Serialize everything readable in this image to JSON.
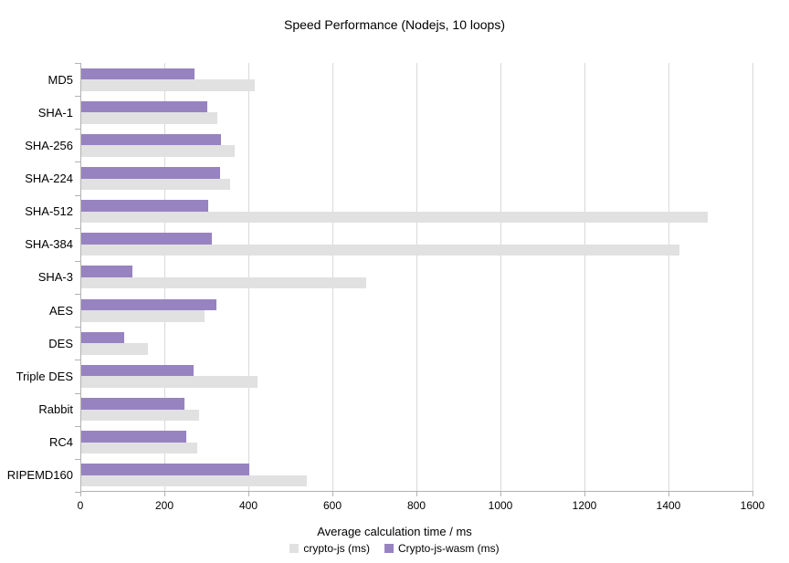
{
  "title": "Speed Performance (Nodejs, 10 loops)",
  "chart_data": {
    "type": "bar",
    "orientation": "horizontal",
    "title": "Speed Performance (Nodejs, 10 loops)",
    "xlabel": "Average calculation time / ms",
    "xlim": [
      0,
      1600
    ],
    "x_ticks": [
      0,
      200,
      400,
      600,
      800,
      1000,
      1200,
      1400,
      1600
    ],
    "grid": true,
    "legend_position": "bottom",
    "categories": [
      "MD5",
      "SHA-1",
      "SHA-256",
      "SHA-224",
      "SHA-512",
      "SHA-384",
      "SHA-3",
      "AES",
      "DES",
      "Triple DES",
      "Rabbit",
      "RC4",
      "RIPEMD160"
    ],
    "series": [
      {
        "name": "crypto-js (ms)",
        "color": "#e1e1e1",
        "values": [
          412,
          323,
          365,
          355,
          1492,
          1423,
          679,
          293,
          158,
          419,
          280,
          277,
          536
        ]
      },
      {
        "name": "Crypto-js-wasm (ms)",
        "color": "#9883c1",
        "values": [
          270,
          299,
          332,
          330,
          302,
          310,
          121,
          321,
          102,
          267,
          245,
          251,
          400
        ]
      }
    ],
    "group_order_top_to_bottom": [
      "Crypto-js-wasm (ms)",
      "crypto-js (ms)"
    ]
  },
  "colors": {
    "background": "#ffffff",
    "axis": "#b2b2b2",
    "grid": "#d9d9d9",
    "text": "#000000"
  }
}
